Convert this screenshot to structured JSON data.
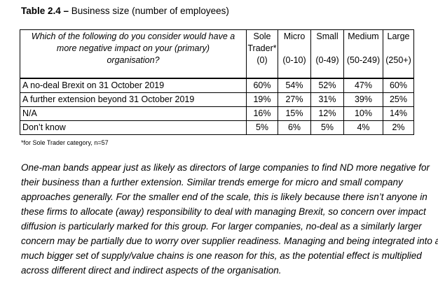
{
  "caption": {
    "label": "Table 2.4 –",
    "title": " Business size (number of employees)"
  },
  "table": {
    "question_lines": [
      "Which of the following do you consider would have a",
      "more negative impact on your (primary)",
      "organisation?"
    ],
    "columns": [
      {
        "lines": [
          "Sole",
          "Trader*",
          "(0)"
        ]
      },
      {
        "lines": [
          "Micro",
          "",
          "(0-10)"
        ]
      },
      {
        "lines": [
          "Small",
          "",
          "(0-49)"
        ]
      },
      {
        "lines": [
          "Medium",
          "",
          "(50-249)"
        ]
      },
      {
        "lines": [
          "Large",
          "",
          "(250+)"
        ]
      }
    ],
    "rows": [
      {
        "label": "A no-deal Brexit on 31 October 2019",
        "values": [
          "60%",
          "54%",
          "52%",
          "47%",
          "60%"
        ]
      },
      {
        "label": "A further extension beyond 31 October 2019",
        "values": [
          "19%",
          "27%",
          "31%",
          "39%",
          "25%"
        ]
      },
      {
        "label": "N/A",
        "values": [
          "16%",
          "15%",
          "12%",
          "10%",
          "14%"
        ]
      },
      {
        "label": "Don’t know",
        "values": [
          "5%",
          "6%",
          "5%",
          "4%",
          "2%"
        ]
      }
    ]
  },
  "footnote": "*for Sole Trader category, n=57",
  "paragraph_lines": [
    "One-man bands appear just as likely as directors of large companies to find ND more negative for",
    "their business than a further extension. Similar trends emerge for micro and small company",
    "approaches generally. For the smaller end of the scale, this is likely because there isn’t anyone in",
    "these firms to allocate (away) responsibility to deal with managing Brexit, so concern over impact",
    "diffusion is particularly marked for this group. For larger companies, no-deal as a similarly larger",
    "concern may be partially due to worry over supplier readiness. Managing and being integrated into a",
    "much bigger set of supply/value chains is one reason for this, as the potential effect is multiplied",
    "across different direct and indirect aspects of the organisation."
  ]
}
